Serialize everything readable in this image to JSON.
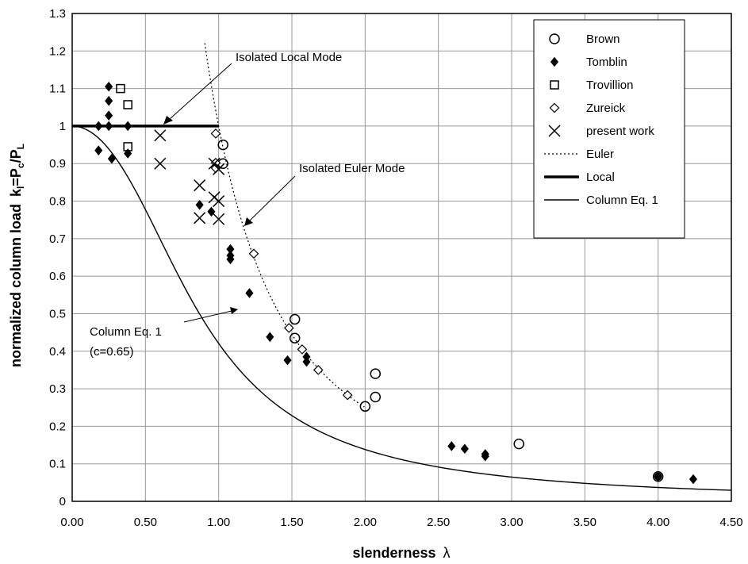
{
  "chart_data": {
    "type": "scatter",
    "xlabel": "slenderness",
    "xlabel_symbol": "λ",
    "ylabel": "normalized column load",
    "ylabel_formula": "k",
    "ylabel_sub_l": "l",
    "ylabel_eq": "=P",
    "ylabel_sub_c": "c",
    "ylabel_slash": "/P",
    "ylabel_sub_L": "L",
    "xlim": [
      0,
      4.5
    ],
    "ylim": [
      0,
      1.3
    ],
    "x_ticks": [
      "0.00",
      "0.50",
      "1.00",
      "1.50",
      "2.00",
      "2.50",
      "3.00",
      "3.50",
      "4.00",
      "4.50"
    ],
    "y_ticks": [
      "0",
      "0.1",
      "0.2",
      "0.3",
      "0.4",
      "0.5",
      "0.6",
      "0.7",
      "0.8",
      "0.9",
      "1",
      "1.1",
      "1.2",
      "1.3"
    ],
    "grid": true,
    "legend_position": "top-right",
    "series": [
      {
        "name": "Brown",
        "marker": "circle",
        "points": [
          [
            1.03,
            0.95
          ],
          [
            1.03,
            0.9
          ],
          [
            1.52,
            0.485
          ],
          [
            1.52,
            0.435
          ],
          [
            2.07,
            0.34
          ],
          [
            2.07,
            0.278
          ],
          [
            2.0,
            0.253
          ],
          [
            3.05,
            0.153
          ],
          [
            4.0,
            0.066
          ]
        ]
      },
      {
        "name": "Tomblin",
        "marker": "diamond-filled",
        "points": [
          [
            0.18,
            1.0
          ],
          [
            0.25,
            1.105
          ],
          [
            0.25,
            1.067
          ],
          [
            0.25,
            1.028
          ],
          [
            0.25,
            1.0
          ],
          [
            0.38,
            1.0
          ],
          [
            0.18,
            0.935
          ],
          [
            0.27,
            0.913
          ],
          [
            0.38,
            0.927
          ],
          [
            0.87,
            0.79
          ],
          [
            0.95,
            0.772
          ],
          [
            1.08,
            0.672
          ],
          [
            1.08,
            0.655
          ],
          [
            1.08,
            0.645
          ],
          [
            1.21,
            0.555
          ],
          [
            1.35,
            0.438
          ],
          [
            1.47,
            0.376
          ],
          [
            1.6,
            0.385
          ],
          [
            1.6,
            0.372
          ],
          [
            2.59,
            0.147
          ],
          [
            2.68,
            0.14
          ],
          [
            2.82,
            0.126
          ],
          [
            2.82,
            0.12
          ],
          [
            4.0,
            0.066
          ],
          [
            4.24,
            0.059
          ]
        ]
      },
      {
        "name": "Trovillion",
        "marker": "square",
        "points": [
          [
            0.33,
            1.1
          ],
          [
            0.38,
            1.057
          ],
          [
            0.38,
            0.945
          ]
        ]
      },
      {
        "name": "Zureick",
        "marker": "diamond-open",
        "points": [
          [
            0.98,
            0.98
          ],
          [
            0.98,
            0.902
          ],
          [
            0.98,
            0.888
          ],
          [
            1.24,
            0.66
          ],
          [
            1.48,
            0.462
          ],
          [
            1.57,
            0.405
          ],
          [
            1.68,
            0.35
          ],
          [
            1.88,
            0.283
          ]
        ]
      },
      {
        "name": "present work",
        "marker": "x",
        "points": [
          [
            0.6,
            0.975
          ],
          [
            0.6,
            0.9
          ],
          [
            0.87,
            0.842
          ],
          [
            0.87,
            0.755
          ],
          [
            0.97,
            0.9
          ],
          [
            0.97,
            0.81
          ],
          [
            1.0,
            0.885
          ],
          [
            1.0,
            0.8
          ],
          [
            1.0,
            0.752
          ]
        ]
      },
      {
        "name": "Euler",
        "line": "dotted"
      },
      {
        "name": "Local",
        "line": "thick",
        "x_range": [
          0,
          1.0
        ],
        "y": 1.0
      },
      {
        "name": "Column Eq. 1",
        "line": "thin",
        "c": 0.65
      }
    ],
    "annotations": [
      {
        "text": "Isolated Local Mode"
      },
      {
        "text": "Isolated Euler Mode"
      },
      {
        "text": "Column Eq. 1"
      },
      {
        "text": "(c=0.65)"
      }
    ]
  }
}
